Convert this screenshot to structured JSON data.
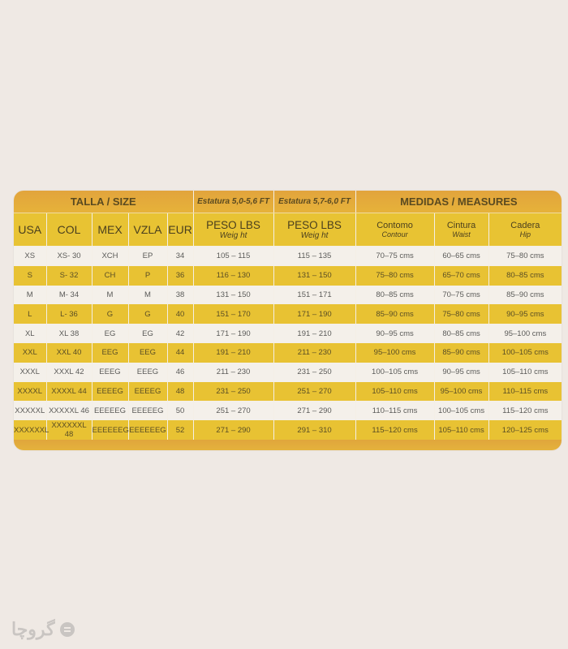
{
  "header_top": {
    "talla": "TALLA / SIZE",
    "estatura1": "Estatura 5,0-5,6 FT",
    "estatura2": "Estatura 5,7-6,0 FT",
    "medidas": "MEDIDAS / MEASURES"
  },
  "columns": [
    {
      "label": "USA"
    },
    {
      "label": "COL"
    },
    {
      "label": "MEX"
    },
    {
      "label": "VZLA"
    },
    {
      "label": "EUR"
    },
    {
      "label": "PESO LBS",
      "sub": "Weig ht"
    },
    {
      "label": "PESO LBS",
      "sub": "Weig ht"
    },
    {
      "label": "Contomo",
      "sub": "Contour"
    },
    {
      "label": "Cintura",
      "sub": "Waist"
    },
    {
      "label": "Cadera",
      "sub": "Hip"
    }
  ],
  "rows": [
    [
      "XS",
      "XS- 30",
      "XCH",
      "EP",
      "34",
      "105  –  115",
      "115  –  135",
      "70–75 cms",
      "60–65 cms",
      "75–80 cms"
    ],
    [
      "S",
      "S- 32",
      "CH",
      "P",
      "36",
      "116  –  130",
      "131  –  150",
      "75–80 cms",
      "65–70 cms",
      "80–85 cms"
    ],
    [
      "M",
      "M- 34",
      "M",
      "M",
      "38",
      "131  –  150",
      "151  –  171",
      "80–85 cms",
      "70–75 cms",
      "85–90 cms"
    ],
    [
      "L",
      "L- 36",
      "G",
      "G",
      "40",
      "151  –  170",
      "171  –  190",
      "85–90 cms",
      "75–80 cms",
      "90–95 cms"
    ],
    [
      "XL",
      "XL  38",
      "EG",
      "EG",
      "42",
      "171  –  190",
      "191  –  210",
      "90–95 cms",
      "80–85 cms",
      "95–100 cms"
    ],
    [
      "XXL",
      "XXL  40",
      "EEG",
      "EEG",
      "44",
      "191  –  210",
      "211  –  230",
      "95–100 cms",
      "85–90 cms",
      "100–105 cms"
    ],
    [
      "XXXL",
      "XXXL 42",
      "EEEG",
      "EEEG",
      "46",
      "211  –  230",
      "231  –  250",
      "100–105 cms",
      "90–95 cms",
      "105–110 cms"
    ],
    [
      "XXXXL",
      "XXXXL 44",
      "EEEEG",
      "EEEEG",
      "48",
      "231  –  250",
      "251  –  270",
      "105–110 cms",
      "95–100 cms",
      "110–115 cms"
    ],
    [
      "XXXXXL",
      "XXXXXL 46",
      "EEEEEG",
      "EEEEEG",
      "50",
      "251  –  270",
      "271  –  290",
      "110–115 cms",
      "100–105 cms",
      "115–120 cms"
    ],
    [
      "XXXXXXL",
      "XXXXXXL 48",
      "EEEEEEG",
      "EEEEEEG",
      "52",
      "271  –  290",
      "291  –  310",
      "115–120 cms",
      "105–110 cms",
      "120–125 cms"
    ]
  ],
  "colors": {
    "yellow": "#e8c233",
    "orange": "#e2a43c",
    "background": "#efe9e4"
  },
  "watermark": {
    "text": "گروچا",
    "icon": "logo-circle-icon"
  }
}
